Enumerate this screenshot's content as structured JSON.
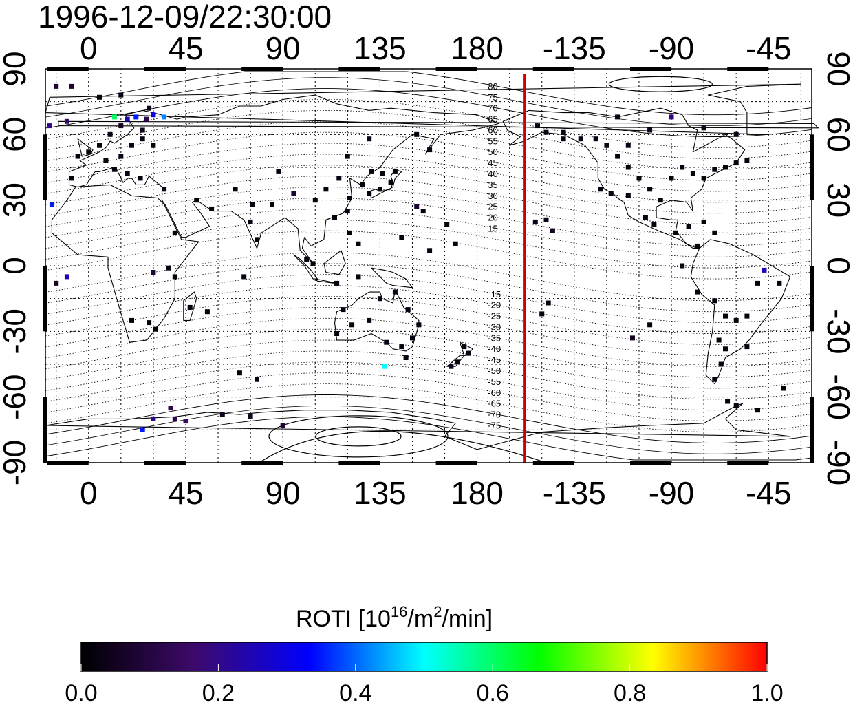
{
  "timestamp": "1996-12-09/22:30:00",
  "map": {
    "lon_ticks": [
      "0",
      "45",
      "90",
      "135",
      "180",
      "-135",
      "-90",
      "-45"
    ],
    "lat_ticks": [
      "90",
      "60",
      "30",
      "0",
      "-30",
      "-60",
      "-90"
    ],
    "lon_range": [
      -20,
      335
    ],
    "lat_range": [
      -90,
      90
    ],
    "terminator_longitude": 202,
    "terminator_color": "#cc0000",
    "grid": true,
    "mlat_labels_north": [
      "80",
      "75",
      "70",
      "65",
      "60",
      "55",
      "50",
      "45",
      "40",
      "35",
      "30",
      "25",
      "20",
      "15"
    ],
    "mlat_labels_south": [
      "-15",
      "-20",
      "-25",
      "-30",
      "-35",
      "-40",
      "-45",
      "-50",
      "-55",
      "-60",
      "-65",
      "-70",
      "-75"
    ]
  },
  "colorbar": {
    "title_prefix": "ROTI  [10",
    "title_sup1": "16",
    "title_mid": "/m",
    "title_sup2": "2",
    "title_suffix": "/min]",
    "ticks": [
      "0.0",
      "0.2",
      "0.4",
      "0.6",
      "0.8",
      "1.0"
    ],
    "range": [
      0.0,
      1.0
    ],
    "colormap": [
      "#000000",
      "#3d0a6b",
      "#0000ff",
      "#00ffff",
      "#00ff00",
      "#ffff00",
      "#ff0000"
    ]
  },
  "chart_data": {
    "type": "scatter",
    "title": "1996-12-09/22:30:00",
    "xlabel": "",
    "ylabel": "",
    "xlim": [
      -20,
      335
    ],
    "ylim": [
      -90,
      90
    ],
    "points": [
      {
        "lon": -15,
        "lat": 82,
        "v": 0.08
      },
      {
        "lon": -8,
        "lat": 82,
        "v": 0.08
      },
      {
        "lon": 5,
        "lat": 77,
        "v": 0.02
      },
      {
        "lon": 15,
        "lat": 78,
        "v": 0.03
      },
      {
        "lon": 28,
        "lat": 72,
        "v": 0.04
      },
      {
        "lon": -18,
        "lat": 64,
        "v": 0.2
      },
      {
        "lon": -10,
        "lat": 66,
        "v": 0.15
      },
      {
        "lon": 12,
        "lat": 68,
        "v": 0.6
      },
      {
        "lon": 18,
        "lat": 67,
        "v": 0.25
      },
      {
        "lon": 22,
        "lat": 68,
        "v": 0.35
      },
      {
        "lon": 30,
        "lat": 69,
        "v": 0.3
      },
      {
        "lon": 35,
        "lat": 68,
        "v": 0.42
      },
      {
        "lon": 27,
        "lat": 67,
        "v": 0.12
      },
      {
        "lon": 15,
        "lat": 64,
        "v": 0.05
      },
      {
        "lon": 25,
        "lat": 62,
        "v": 0.04
      },
      {
        "lon": 10,
        "lat": 60,
        "v": 0.03
      },
      {
        "lon": 5,
        "lat": 55,
        "v": 0.02
      },
      {
        "lon": 0,
        "lat": 52,
        "v": 0.02
      },
      {
        "lon": -5,
        "lat": 50,
        "v": 0.02
      },
      {
        "lon": 8,
        "lat": 48,
        "v": 0.02
      },
      {
        "lon": 15,
        "lat": 50,
        "v": 0.03
      },
      {
        "lon": 20,
        "lat": 55,
        "v": 0.03
      },
      {
        "lon": 25,
        "lat": 58,
        "v": 0.02
      },
      {
        "lon": 30,
        "lat": 55,
        "v": 0.02
      },
      {
        "lon": 12,
        "lat": 44,
        "v": 0.02
      },
      {
        "lon": 18,
        "lat": 42,
        "v": 0.03
      },
      {
        "lon": 24,
        "lat": 40,
        "v": 0.02
      },
      {
        "lon": -8,
        "lat": 40,
        "v": 0.02
      },
      {
        "lon": 35,
        "lat": 35,
        "v": 0.03
      },
      {
        "lon": -17,
        "lat": 28,
        "v": 0.35
      },
      {
        "lon": 50,
        "lat": 30,
        "v": 0.02
      },
      {
        "lon": 57,
        "lat": 26,
        "v": 0.02
      },
      {
        "lon": 68,
        "lat": 35,
        "v": 0.02
      },
      {
        "lon": 76,
        "lat": 28,
        "v": 0.02
      },
      {
        "lon": 75,
        "lat": 20,
        "v": 0.03
      },
      {
        "lon": 78,
        "lat": 12,
        "v": 0.02
      },
      {
        "lon": 85,
        "lat": 28,
        "v": 0.02
      },
      {
        "lon": 88,
        "lat": 43,
        "v": 0.02
      },
      {
        "lon": 95,
        "lat": 33,
        "v": 0.08
      },
      {
        "lon": 105,
        "lat": 30,
        "v": 0.02
      },
      {
        "lon": 110,
        "lat": 35,
        "v": 0.02
      },
      {
        "lon": 116,
        "lat": 40,
        "v": 0.02
      },
      {
        "lon": 121,
        "lat": 31,
        "v": 0.02
      },
      {
        "lon": 114,
        "lat": 22,
        "v": 0.02
      },
      {
        "lon": 120,
        "lat": 25,
        "v": 0.03
      },
      {
        "lon": 127,
        "lat": 37,
        "v": 0.02
      },
      {
        "lon": 130,
        "lat": 33,
        "v": 0.02
      },
      {
        "lon": 135,
        "lat": 35,
        "v": 0.02
      },
      {
        "lon": 140,
        "lat": 38,
        "v": 0.02
      },
      {
        "lon": 142,
        "lat": 43,
        "v": 0.02
      },
      {
        "lon": 136,
        "lat": 42,
        "v": 0.02
      },
      {
        "lon": 131,
        "lat": 43,
        "v": 0.02
      },
      {
        "lon": 121,
        "lat": 15,
        "v": 0.02
      },
      {
        "lon": 125,
        "lat": 10,
        "v": 0.02
      },
      {
        "lon": 101,
        "lat": 3,
        "v": 0.02
      },
      {
        "lon": 104,
        "lat": 1,
        "v": 0.02
      },
      {
        "lon": 115,
        "lat": -8,
        "v": 0.02
      },
      {
        "lon": 125,
        "lat": -5,
        "v": 0.02
      },
      {
        "lon": 145,
        "lat": 13,
        "v": 0.02
      },
      {
        "lon": 158,
        "lat": 7,
        "v": 0.02
      },
      {
        "lon": 170,
        "lat": 10,
        "v": 0.02
      },
      {
        "lon": 166,
        "lat": 19,
        "v": 0.02
      },
      {
        "lon": 120,
        "lat": 50,
        "v": 0.02
      },
      {
        "lon": 130,
        "lat": 58,
        "v": 0.03
      },
      {
        "lon": 152,
        "lat": 60,
        "v": 0.02
      },
      {
        "lon": 158,
        "lat": 53,
        "v": 0.02
      },
      {
        "lon": 155,
        "lat": 25,
        "v": 0.02
      },
      {
        "lon": 152,
        "lat": 27,
        "v": 0.08
      },
      {
        "lon": 40,
        "lat": 15,
        "v": 0.02
      },
      {
        "lon": 37,
        "lat": -1,
        "v": 0.02
      },
      {
        "lon": 30,
        "lat": -3,
        "v": 0.08
      },
      {
        "lon": 40,
        "lat": -5,
        "v": 0.02
      },
      {
        "lon": 20,
        "lat": -25,
        "v": 0.02
      },
      {
        "lon": 28,
        "lat": -26,
        "v": 0.02
      },
      {
        "lon": 31,
        "lat": -29,
        "v": 0.02
      },
      {
        "lon": 47,
        "lat": -19,
        "v": 0.02
      },
      {
        "lon": 55,
        "lat": -21,
        "v": 0.02
      },
      {
        "lon": -15,
        "lat": -8,
        "v": 0.05
      },
      {
        "lon": -10,
        "lat": -5,
        "v": 0.25
      },
      {
        "lon": 72,
        "lat": -5,
        "v": 0.02
      },
      {
        "lon": 115,
        "lat": -31,
        "v": 0.02
      },
      {
        "lon": 118,
        "lat": -20,
        "v": 0.02
      },
      {
        "lon": 122,
        "lat": -27,
        "v": 0.02
      },
      {
        "lon": 130,
        "lat": -25,
        "v": 0.03
      },
      {
        "lon": 138,
        "lat": -35,
        "v": 0.02
      },
      {
        "lon": 145,
        "lat": -37,
        "v": 0.02
      },
      {
        "lon": 150,
        "lat": -33,
        "v": 0.02
      },
      {
        "lon": 147,
        "lat": -42,
        "v": 0.02
      },
      {
        "lon": 148,
        "lat": -20,
        "v": 0.02
      },
      {
        "lon": 142,
        "lat": -12,
        "v": 0.02
      },
      {
        "lon": 135,
        "lat": -15,
        "v": 0.02
      },
      {
        "lon": 153,
        "lat": -27,
        "v": 0.02
      },
      {
        "lon": 174,
        "lat": -37,
        "v": 0.02
      },
      {
        "lon": 171,
        "lat": -44,
        "v": 0.02
      },
      {
        "lon": 176,
        "lat": -40,
        "v": 0.02
      },
      {
        "lon": 168,
        "lat": -46,
        "v": 0.05
      },
      {
        "lon": 137,
        "lat": -46,
        "v": 0.5
      },
      {
        "lon": 70,
        "lat": -49,
        "v": 0.02
      },
      {
        "lon": 78,
        "lat": -52,
        "v": 0.02
      },
      {
        "lon": 38,
        "lat": -65,
        "v": 0.12
      },
      {
        "lon": 40,
        "lat": -70,
        "v": 0.12
      },
      {
        "lon": 30,
        "lat": -70,
        "v": 0.2
      },
      {
        "lon": 25,
        "lat": -75,
        "v": 0.35
      },
      {
        "lon": 45,
        "lat": -71,
        "v": 0.15
      },
      {
        "lon": 62,
        "lat": -68,
        "v": 0.05
      },
      {
        "lon": 75,
        "lat": -69,
        "v": 0.05
      },
      {
        "lon": 90,
        "lat": -73,
        "v": 0.08
      },
      {
        "lon": 212,
        "lat": 21,
        "v": 0.03
      },
      {
        "lon": 207,
        "lat": 20,
        "v": 0.03
      },
      {
        "lon": 215,
        "lat": 16,
        "v": 0.05
      },
      {
        "lon": 208,
        "lat": 64,
        "v": 0.03
      },
      {
        "lon": 212,
        "lat": 61,
        "v": 0.03
      },
      {
        "lon": 220,
        "lat": 61,
        "v": 0.03
      },
      {
        "lon": 213,
        "lat": -17,
        "v": 0.02
      },
      {
        "lon": 210,
        "lat": -22,
        "v": 0.02
      },
      {
        "lon": 220,
        "lat": 58,
        "v": 0.03
      },
      {
        "lon": 228,
        "lat": 58,
        "v": 0.03
      },
      {
        "lon": 235,
        "lat": 58,
        "v": 0.03
      },
      {
        "lon": 240,
        "lat": 55,
        "v": 0.03
      },
      {
        "lon": 245,
        "lat": 50,
        "v": 0.02
      },
      {
        "lon": 250,
        "lat": 45,
        "v": 0.02
      },
      {
        "lon": 255,
        "lat": 40,
        "v": 0.02
      },
      {
        "lon": 260,
        "lat": 35,
        "v": 0.02
      },
      {
        "lon": 265,
        "lat": 30,
        "v": 0.02
      },
      {
        "lon": 270,
        "lat": 40,
        "v": 0.02
      },
      {
        "lon": 275,
        "lat": 45,
        "v": 0.03
      },
      {
        "lon": 280,
        "lat": 42,
        "v": 0.02
      },
      {
        "lon": 285,
        "lat": 40,
        "v": 0.02
      },
      {
        "lon": 290,
        "lat": 44,
        "v": 0.02
      },
      {
        "lon": 295,
        "lat": 45,
        "v": 0.02
      },
      {
        "lon": 300,
        "lat": 47,
        "v": 0.02
      },
      {
        "lon": 305,
        "lat": 48,
        "v": 0.02
      },
      {
        "lon": 250,
        "lat": 55,
        "v": 0.03
      },
      {
        "lon": 260,
        "lat": 62,
        "v": 0.05
      },
      {
        "lon": 270,
        "lat": 68,
        "v": 0.2
      },
      {
        "lon": 285,
        "lat": 63,
        "v": 0.05
      },
      {
        "lon": 300,
        "lat": 60,
        "v": 0.03
      },
      {
        "lon": 245,
        "lat": 68,
        "v": 0.03
      },
      {
        "lon": 237,
        "lat": 35,
        "v": 0.02
      },
      {
        "lon": 242,
        "lat": 33,
        "v": 0.02
      },
      {
        "lon": 250,
        "lat": 32,
        "v": 0.02
      },
      {
        "lon": 258,
        "lat": 22,
        "v": 0.02
      },
      {
        "lon": 262,
        "lat": 19,
        "v": 0.02
      },
      {
        "lon": 272,
        "lat": 15,
        "v": 0.02
      },
      {
        "lon": 278,
        "lat": 18,
        "v": 0.02
      },
      {
        "lon": 285,
        "lat": 20,
        "v": 0.02
      },
      {
        "lon": 290,
        "lat": 15,
        "v": 0.02
      },
      {
        "lon": 282,
        "lat": 9,
        "v": 0.02
      },
      {
        "lon": 275,
        "lat": 0,
        "v": 0.02
      },
      {
        "lon": 282,
        "lat": -12,
        "v": 0.02
      },
      {
        "lon": 290,
        "lat": -16,
        "v": 0.02
      },
      {
        "lon": 295,
        "lat": -23,
        "v": 0.02
      },
      {
        "lon": 300,
        "lat": -25,
        "v": 0.02
      },
      {
        "lon": 305,
        "lat": -23,
        "v": 0.02
      },
      {
        "lon": 310,
        "lat": -8,
        "v": 0.02
      },
      {
        "lon": 320,
        "lat": -8,
        "v": 0.02
      },
      {
        "lon": 313,
        "lat": -2,
        "v": 0.25
      },
      {
        "lon": 292,
        "lat": -34,
        "v": 0.02
      },
      {
        "lon": 295,
        "lat": -38,
        "v": 0.02
      },
      {
        "lon": 293,
        "lat": -45,
        "v": 0.02
      },
      {
        "lon": 290,
        "lat": -52,
        "v": 0.02
      },
      {
        "lon": 296,
        "lat": -62,
        "v": 0.02
      },
      {
        "lon": 300,
        "lat": -64,
        "v": 0.02
      },
      {
        "lon": 310,
        "lat": -66,
        "v": 0.02
      },
      {
        "lon": 322,
        "lat": -56,
        "v": 0.02
      },
      {
        "lon": 305,
        "lat": -37,
        "v": 0.02
      },
      {
        "lon": 260,
        "lat": -27,
        "v": 0.02
      },
      {
        "lon": 252,
        "lat": -33,
        "v": 0.05
      }
    ]
  }
}
